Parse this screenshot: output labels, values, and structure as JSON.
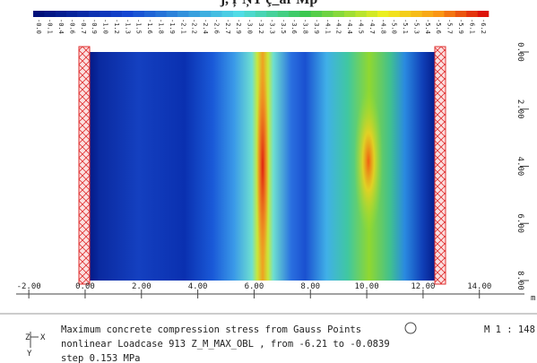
{
  "header": {
    "title": "ĵ, ŗ ŅŤ ç_ăr Mp"
  },
  "colorbar": {
    "labels": [
      "-0.0",
      "-0.1",
      "-0.4",
      "-0.6",
      "-0.7",
      "-0.9",
      "-1.0",
      "-1.2",
      "-1.3",
      "-1.5",
      "-1.6",
      "-1.8",
      "-1.9",
      "-2.1",
      "-2.2",
      "-2.4",
      "-2.6",
      "-2.7",
      "-2.9",
      "-3.0",
      "-3.2",
      "-3.3",
      "-3.5",
      "-3.6",
      "-3.8",
      "-3.9",
      "-4.1",
      "-4.2",
      "-4.4",
      "-4.5",
      "-4.7",
      "-4.8",
      "-5.0",
      "-5.1",
      "-5.3",
      "-5.4",
      "-5.6",
      "-5.7",
      "-5.9",
      "-6.1",
      "-6.2"
    ]
  },
  "x_axis": {
    "xlim": [
      -2.45,
      15.6
    ],
    "xticks": [
      {
        "value": -2,
        "label": "-2.00"
      },
      {
        "value": 0,
        "label": "0.00"
      },
      {
        "value": 2,
        "label": "2.00"
      },
      {
        "value": 4,
        "label": "4.00"
      },
      {
        "value": 6,
        "label": "6.00"
      },
      {
        "value": 8,
        "label": "8.00"
      },
      {
        "value": 10,
        "label": "10.00"
      },
      {
        "value": 12,
        "label": "12.00"
      },
      {
        "value": 14,
        "label": "14.00"
      }
    ],
    "unit": "m"
  },
  "y_axis": {
    "ylim": [
      0,
      8
    ],
    "yticks": [
      {
        "value": 0,
        "label": "0.00"
      },
      {
        "value": 2,
        "label": "2.00"
      },
      {
        "value": 4,
        "label": "4.00"
      },
      {
        "value": 6,
        "label": "6.00"
      },
      {
        "value": 8,
        "label": "8.00"
      }
    ]
  },
  "footer": {
    "lines": [
      "Maximum concrete compression stress from Gauss Points",
      "nonlinear Loadcase 913 Z_M_MAX_OBL   , from -6.21 to -0.0839",
      "step 0.153 MPa"
    ],
    "scale": "M 1 : 148",
    "axis_x": "X",
    "axis_z": "Z",
    "axis_y": "Y"
  }
}
